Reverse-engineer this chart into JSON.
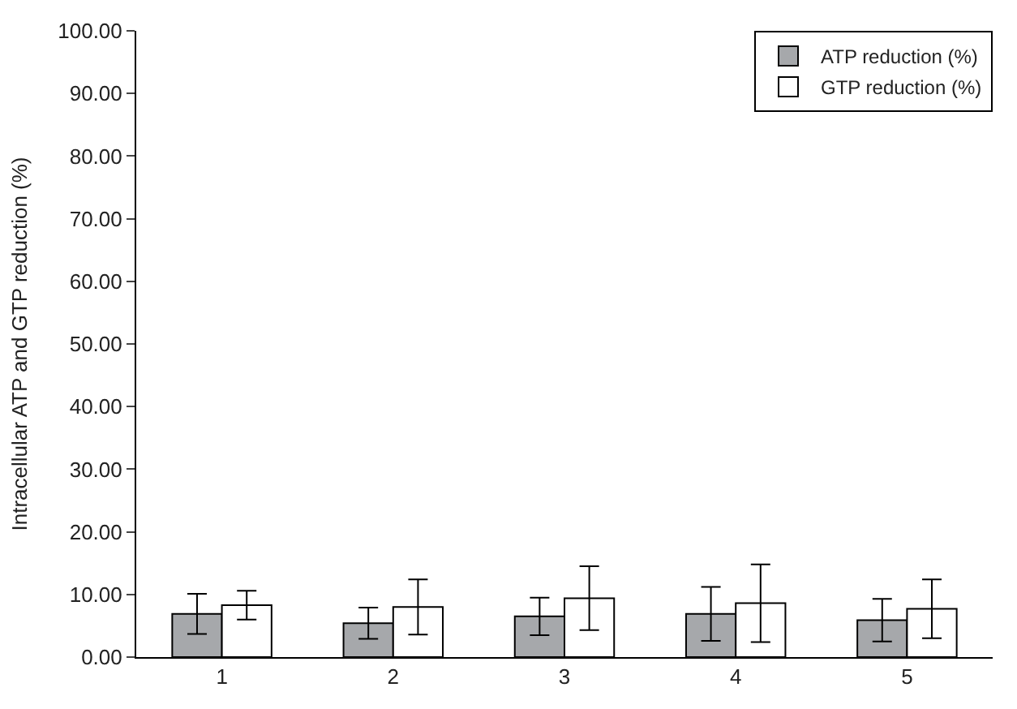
{
  "chart_data": {
    "type": "bar",
    "ylabel": "Intracellular ATP and GTP reduction (%)",
    "categories": [
      "1",
      "2",
      "3",
      "4",
      "5"
    ],
    "series": [
      {
        "name": "ATP reduction (%)",
        "color": "#a6a8ab",
        "values": [
          6.9,
          5.4,
          6.5,
          6.9,
          5.9
        ],
        "errors": [
          3.2,
          2.5,
          3.0,
          4.3,
          3.4
        ]
      },
      {
        "name": "GTP reduction (%)",
        "color": "#ffffff",
        "values": [
          8.3,
          8.0,
          9.4,
          8.6,
          7.7
        ],
        "errors": [
          2.3,
          4.4,
          5.1,
          6.2,
          4.7
        ]
      }
    ],
    "ylim": [
      0,
      100
    ],
    "yticks": [
      {
        "value": 0,
        "label": "0.00"
      },
      {
        "value": 10,
        "label": "10.00"
      },
      {
        "value": 20,
        "label": "20.00"
      },
      {
        "value": 30,
        "label": "30.00"
      },
      {
        "value": 40,
        "label": "40.00"
      },
      {
        "value": 50,
        "label": "50.00"
      },
      {
        "value": 60,
        "label": "60.00"
      },
      {
        "value": 70,
        "label": "70.00"
      },
      {
        "value": 80,
        "label": "80.00"
      },
      {
        "value": 90,
        "label": "90.00"
      },
      {
        "value": 100,
        "label": "100.00"
      }
    ],
    "legend": "top right"
  }
}
